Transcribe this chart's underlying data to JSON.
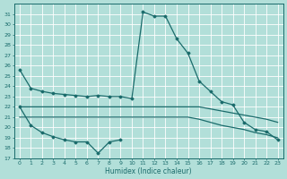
{
  "xlabel": "Humidex (Indice chaleur)",
  "bg_color": "#b2dfd9",
  "grid_color": "#d0eeea",
  "line_color": "#1a6b6b",
  "ylim": [
    17,
    32
  ],
  "xlim": [
    -0.5,
    23.5
  ],
  "yticks": [
    17,
    18,
    19,
    20,
    21,
    22,
    23,
    24,
    25,
    26,
    27,
    28,
    29,
    30,
    31
  ],
  "line_peak": {
    "x": [
      0,
      1,
      2,
      3,
      4,
      5,
      6,
      7,
      8,
      9,
      10,
      11,
      12,
      13,
      14,
      15,
      16,
      17,
      18,
      19,
      20,
      21,
      22,
      23
    ],
    "y": [
      25.6,
      23.8,
      23.5,
      23.3,
      23.2,
      23.1,
      23.0,
      23.1,
      23.0,
      23.0,
      22.8,
      31.2,
      30.8,
      30.8,
      28.6,
      27.2,
      24.5,
      23.5,
      22.5,
      22.2,
      20.5,
      19.8,
      19.6,
      18.8
    ]
  },
  "line_upper": {
    "x": [
      0,
      1,
      2,
      3,
      4,
      5,
      6,
      7,
      8,
      9,
      10,
      11,
      12,
      13,
      14,
      15,
      16,
      17,
      18,
      19,
      20,
      21,
      22,
      23
    ],
    "y": [
      22.0,
      22.0,
      22.0,
      22.0,
      22.0,
      22.0,
      22.0,
      22.0,
      22.0,
      22.0,
      22.0,
      22.0,
      22.0,
      22.0,
      22.0,
      22.0,
      22.0,
      21.8,
      21.6,
      21.4,
      21.2,
      21.0,
      20.8,
      20.5
    ]
  },
  "line_lower": {
    "x": [
      0,
      1,
      2,
      3,
      4,
      5,
      6,
      7,
      8,
      9,
      10,
      11,
      12,
      13,
      14,
      15,
      16,
      17,
      18,
      19,
      20,
      21,
      22,
      23
    ],
    "y": [
      21.0,
      21.0,
      21.0,
      21.0,
      21.0,
      21.0,
      21.0,
      21.0,
      21.0,
      21.0,
      21.0,
      21.0,
      21.0,
      21.0,
      21.0,
      21.0,
      20.8,
      20.5,
      20.2,
      20.0,
      19.8,
      19.5,
      19.3,
      19.0
    ]
  },
  "line_zigzag": {
    "x": [
      0,
      1,
      2,
      3,
      4,
      5,
      6,
      7,
      8,
      9
    ],
    "y": [
      22.0,
      20.2,
      19.5,
      19.1,
      18.8,
      18.6,
      18.6,
      17.5,
      18.6,
      18.8
    ]
  }
}
